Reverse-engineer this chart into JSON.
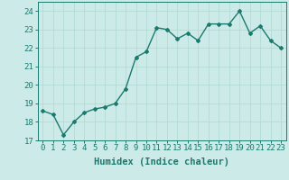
{
  "x": [
    0,
    1,
    2,
    3,
    4,
    5,
    6,
    7,
    8,
    9,
    10,
    11,
    12,
    13,
    14,
    15,
    16,
    17,
    18,
    19,
    20,
    21,
    22,
    23
  ],
  "y": [
    18.6,
    18.4,
    17.3,
    18.0,
    18.5,
    18.7,
    18.8,
    19.0,
    19.8,
    21.5,
    21.8,
    23.1,
    23.0,
    22.5,
    22.8,
    22.4,
    23.3,
    23.3,
    23.3,
    24.0,
    22.8,
    23.2,
    22.4,
    22.0
  ],
  "line_color": "#1a7a6e",
  "marker": "D",
  "marker_size": 2.0,
  "bg_color": "#cceae7",
  "grid_color": "#aed8d4",
  "xlabel": "Humidex (Indice chaleur)",
  "ylim": [
    17,
    24.5
  ],
  "yticks": [
    17,
    18,
    19,
    20,
    21,
    22,
    23,
    24
  ],
  "xticks": [
    0,
    1,
    2,
    3,
    4,
    5,
    6,
    7,
    8,
    9,
    10,
    11,
    12,
    13,
    14,
    15,
    16,
    17,
    18,
    19,
    20,
    21,
    22,
    23
  ],
  "tick_label_fontsize": 6.5,
  "xlabel_fontsize": 7.5,
  "axis_color": "#1a7a6e",
  "line_width": 1.0
}
